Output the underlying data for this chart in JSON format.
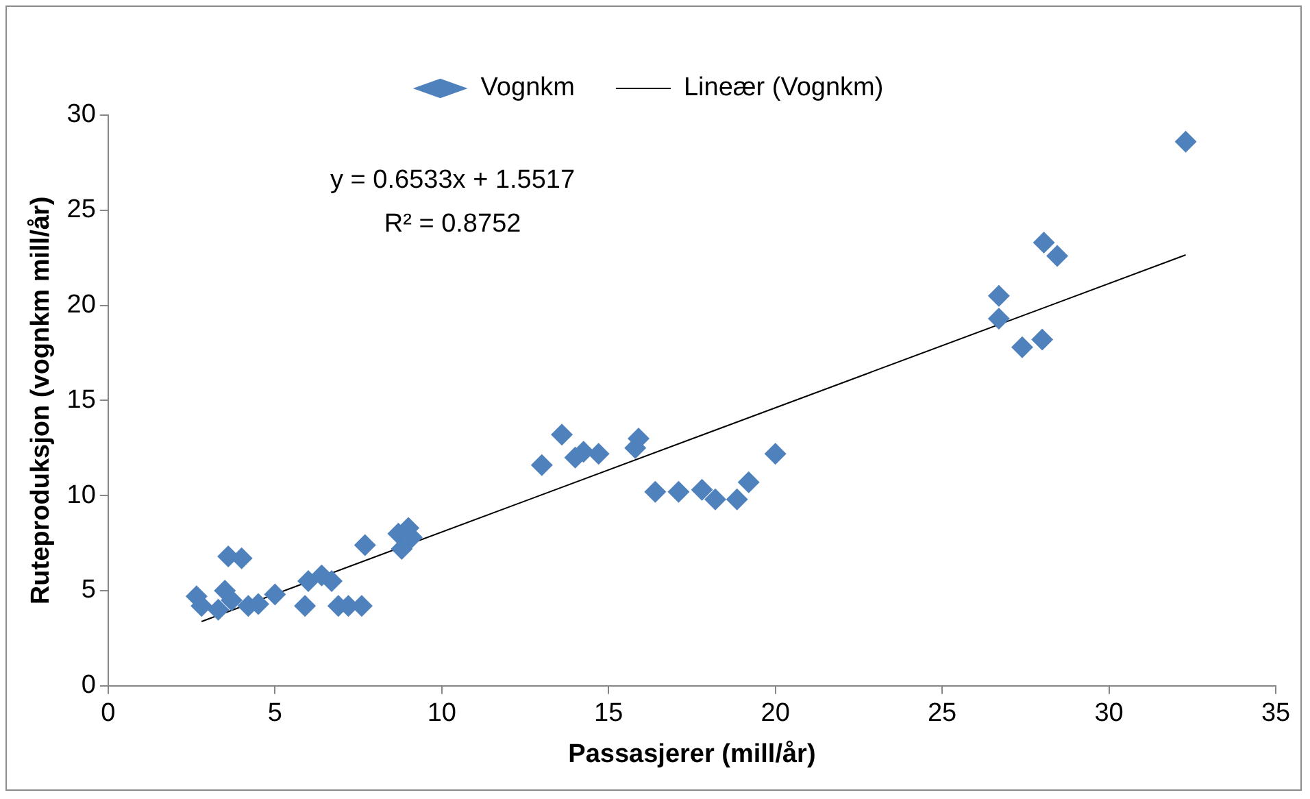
{
  "chart_data": {
    "type": "scatter",
    "xlabel": "Passasjerer (mill/år)",
    "ylabel": "Ruteproduksjon (vognkm mill/år)",
    "xlim": [
      0,
      35
    ],
    "xticks": [
      0,
      5,
      10,
      15,
      20,
      25,
      30,
      35
    ],
    "ylim": [
      0,
      30
    ],
    "yticks": [
      0,
      5,
      10,
      15,
      20,
      25,
      30
    ],
    "grid": false,
    "legend": "top",
    "marker": "diamond",
    "annotations": [
      "y = 0.6533x + 1.5517",
      "R² = 0.8752"
    ],
    "series": [
      {
        "name": "Vognkm",
        "type": "scatter",
        "color": "#4f81bd",
        "x": [
          2.65,
          2.8,
          3.3,
          3.6,
          4.0,
          3.5,
          3.7,
          4.2,
          4.5,
          5.0,
          5.8,
          5.9,
          6.0,
          6.4,
          6.7,
          6.9,
          7.2,
          7.6,
          7.7,
          8.7,
          8.8,
          9.0,
          9.1,
          13.0,
          13.6,
          14.0,
          14.25,
          14.7,
          15.9,
          15.8,
          16.4,
          17.1,
          17.8,
          18.2,
          18.85,
          19.2,
          20.0,
          26.7,
          26.7,
          27.4,
          28.0,
          28.05,
          28.45,
          32.3
        ],
        "values": [
          4.7,
          4.2,
          4.0,
          6.8,
          6.7,
          5.0,
          4.5,
          4.2,
          4.3,
          4.8,
          null,
          4.2,
          5.5,
          5.8,
          5.5,
          4.2,
          4.2,
          4.2,
          7.4,
          8.0,
          7.2,
          8.3,
          7.8,
          11.6,
          13.2,
          12.0,
          12.3,
          12.2,
          13.0,
          12.5,
          10.2,
          10.2,
          10.3,
          9.8,
          9.8,
          10.7,
          12.2,
          20.5,
          19.3,
          17.8,
          18.2,
          23.3,
          22.6,
          28.6
        ]
      },
      {
        "name": "Lineær (Vognkm)",
        "type": "line",
        "color": "#000000",
        "line_style": "solid",
        "marker": "none",
        "x": [
          2.8,
          32.3
        ],
        "values": [
          3.38,
          22.65
        ]
      }
    ]
  }
}
